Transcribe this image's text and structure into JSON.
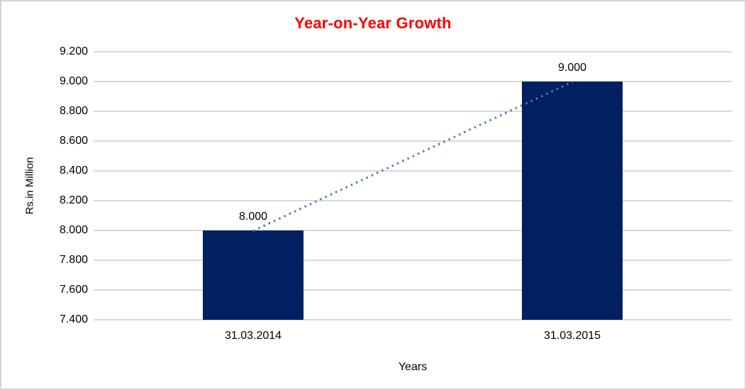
{
  "window": {
    "background_color": "#ffffff",
    "border_color": "#d3d3d3"
  },
  "chart_data": {
    "type": "bar",
    "title": "Year-on-Year Growth",
    "title_color": "#fe0000",
    "xlabel": "Years",
    "ylabel": "Rs.in Million",
    "categories": [
      "31.03.2014",
      "31.03.2015"
    ],
    "values": [
      8.0,
      9.0
    ],
    "value_labels": [
      "8.000",
      "9.000"
    ],
    "ylim": [
      7.4,
      9.2
    ],
    "ytick_step": 0.2,
    "ytick_labels": [
      "9.200",
      "9.000",
      "8.800",
      "8.600",
      "8.400",
      "8.200",
      "8.000",
      "7.800",
      "7.600",
      "7.400"
    ],
    "grid": true,
    "gridline_color": "#d9d9d9",
    "bar_color": "#002060",
    "label_color": "#000000",
    "legend": "none",
    "trendline": {
      "style": "dotted",
      "color": "#4a7ebb",
      "from_value": 8.0,
      "to_value": 9.0
    }
  }
}
